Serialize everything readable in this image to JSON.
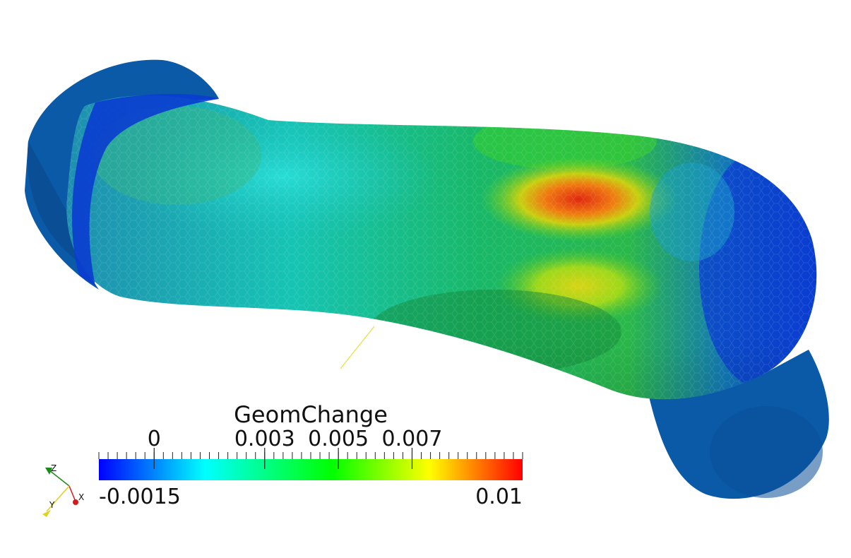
{
  "scalar_bar": {
    "title": "GeomChange",
    "range_min": -0.0015,
    "range_max": 0.01,
    "min_label": "-0.0015",
    "max_label": "0.01",
    "labels": [
      {
        "text": "0",
        "value": 0
      },
      {
        "text": "0.003",
        "value": 0.003
      },
      {
        "text": "0.005",
        "value": 0.005
      },
      {
        "text": "0.007",
        "value": 0.007
      }
    ],
    "colormap": [
      "#0000ff",
      "#00ffff",
      "#00ff00",
      "#ffff00",
      "#ff0000"
    ]
  },
  "orientation_axes": {
    "z_label": "Z",
    "x_label": "X",
    "y_label": "Y",
    "z_color": "#1e8a1e",
    "x_color": "#d41a1a",
    "y_color": "#e0d020"
  },
  "surface_colors": {
    "end_caps": "#0b5aa8",
    "outer_band": "#0a3cd0",
    "hotspot": "#e02810"
  }
}
